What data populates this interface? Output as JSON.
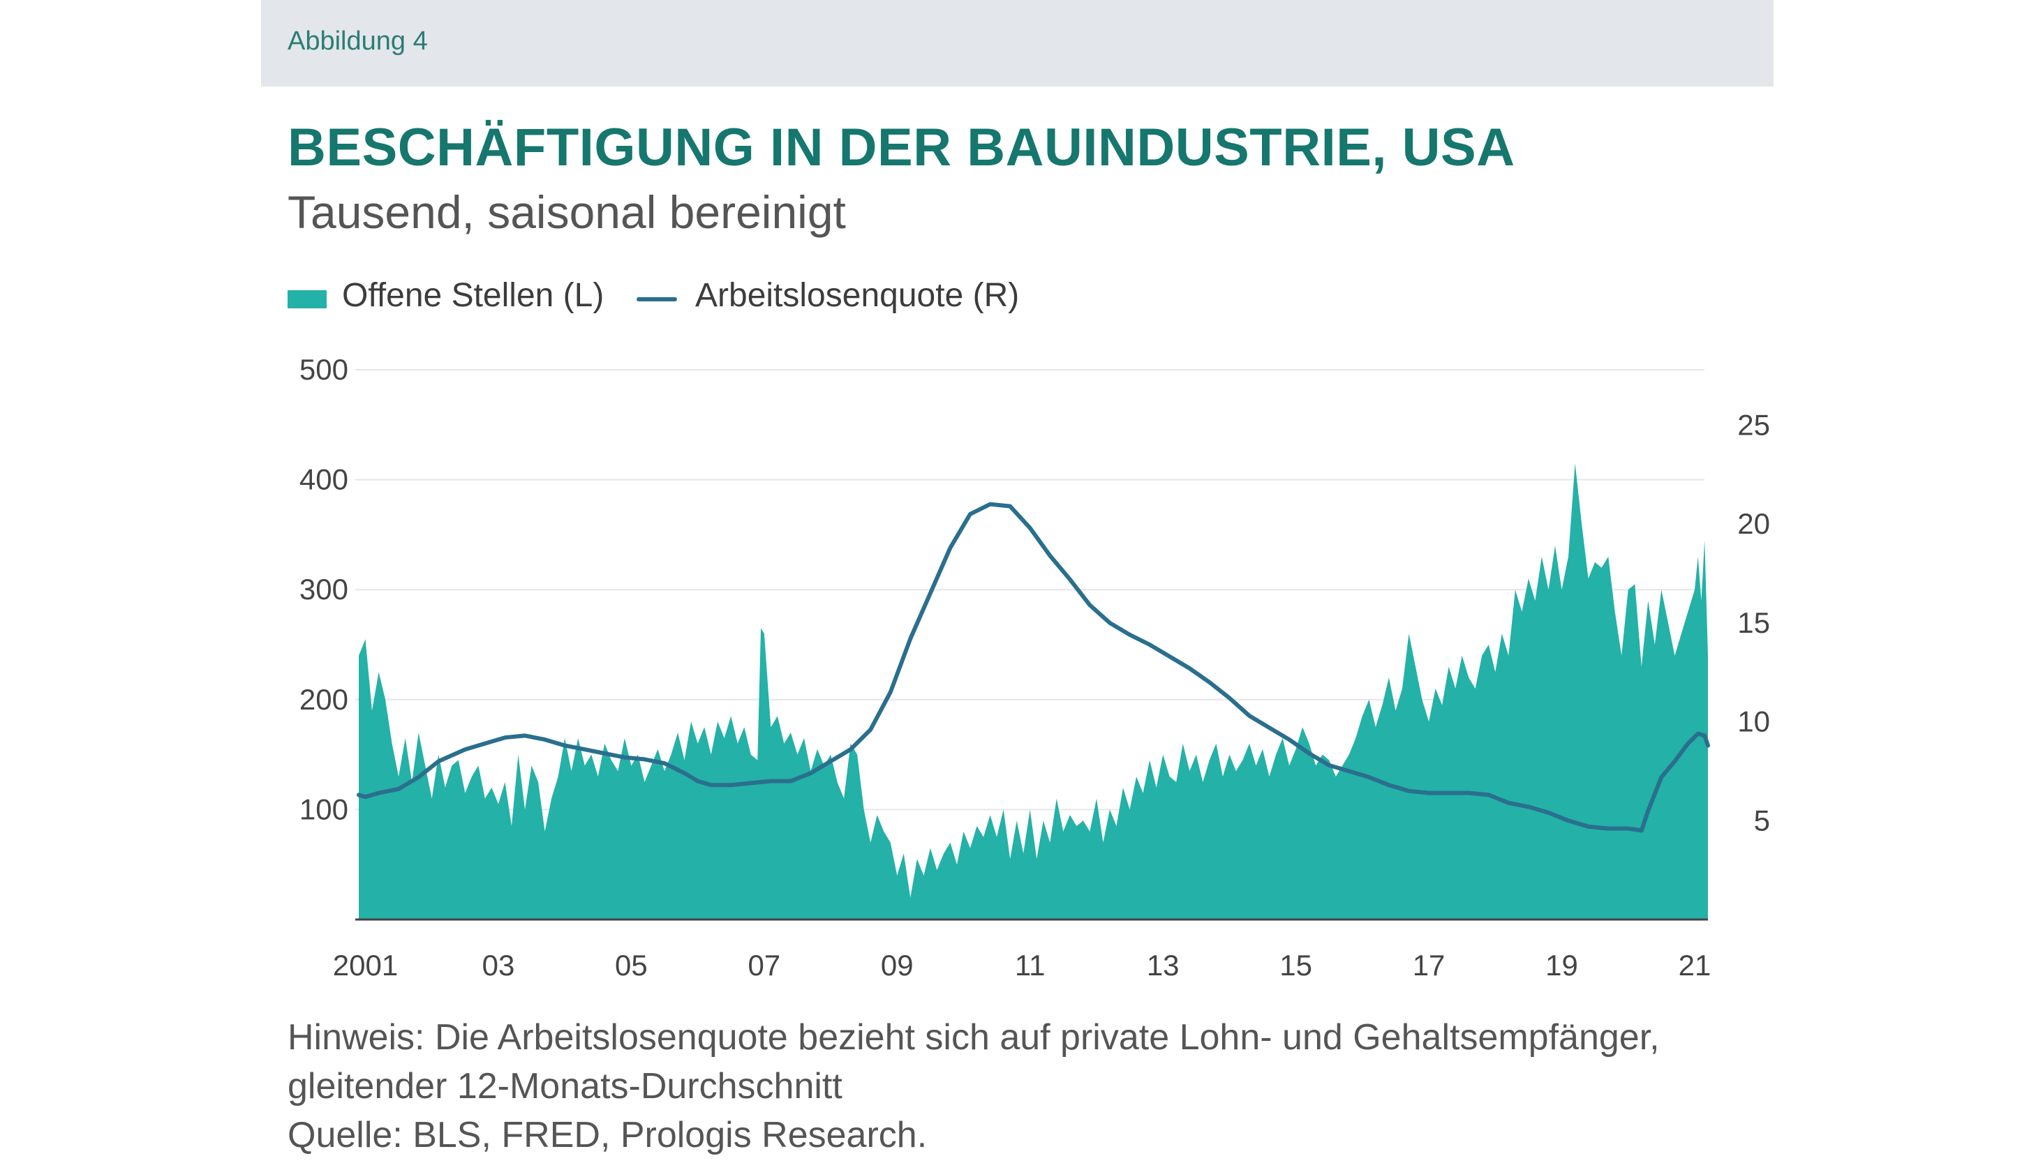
{
  "figure_label": "Abbildung 4",
  "title": "BESCHÄFTIGUNG IN DER BAUINDUSTRIE, USA",
  "subtitle": "Tausend, saisonal bereinigt",
  "legend": {
    "area_label": "Offene Stellen (L)",
    "line_label": "Arbeitslosenquote (R)"
  },
  "notes": {
    "line1": "Hinweis: Die Arbeitslosenquote bezieht sich auf private Lohn- und Gehaltsempfänger,",
    "line2": "gleitender 12-Monats-Durchschnitt",
    "line3": "Quelle: BLS, FRED, Prologis Research."
  },
  "colors": {
    "area": "#24b1a7",
    "line": "#2a6f8d",
    "grid": "#e6e6e6",
    "title": "#15776d"
  },
  "chart_data": {
    "type": "area+line",
    "x_range": [
      2000.9,
      2021.2
    ],
    "left_axis": {
      "ticks": [
        100,
        200,
        300,
        400,
        500
      ],
      "ylim": [
        0,
        500
      ]
    },
    "right_axis": {
      "ticks": [
        5,
        10,
        15,
        20,
        25
      ],
      "ylim": [
        0,
        27.8
      ]
    },
    "x_ticks": [
      {
        "x": 2001,
        "label": "2001"
      },
      {
        "x": 2003,
        "label": "03"
      },
      {
        "x": 2005,
        "label": "05"
      },
      {
        "x": 2007,
        "label": "07"
      },
      {
        "x": 2009,
        "label": "09"
      },
      {
        "x": 2011,
        "label": "11"
      },
      {
        "x": 2013,
        "label": "13"
      },
      {
        "x": 2015,
        "label": "15"
      },
      {
        "x": 2017,
        "label": "17"
      },
      {
        "x": 2019,
        "label": "19"
      },
      {
        "x": 2021,
        "label": "21"
      }
    ],
    "series": [
      {
        "name": "Offene Stellen (L)",
        "type": "area",
        "axis": "left",
        "points": [
          [
            2000.9,
            240
          ],
          [
            2001.0,
            255
          ],
          [
            2001.1,
            190
          ],
          [
            2001.2,
            225
          ],
          [
            2001.3,
            200
          ],
          [
            2001.4,
            160
          ],
          [
            2001.5,
            130
          ],
          [
            2001.6,
            165
          ],
          [
            2001.7,
            125
          ],
          [
            2001.8,
            170
          ],
          [
            2001.9,
            140
          ],
          [
            2002.0,
            110
          ],
          [
            2002.1,
            150
          ],
          [
            2002.2,
            120
          ],
          [
            2002.3,
            140
          ],
          [
            2002.4,
            145
          ],
          [
            2002.5,
            115
          ],
          [
            2002.6,
            130
          ],
          [
            2002.7,
            140
          ],
          [
            2002.8,
            110
          ],
          [
            2002.9,
            120
          ],
          [
            2003.0,
            105
          ],
          [
            2003.1,
            125
          ],
          [
            2003.2,
            85
          ],
          [
            2003.3,
            150
          ],
          [
            2003.4,
            100
          ],
          [
            2003.5,
            140
          ],
          [
            2003.6,
            125
          ],
          [
            2003.7,
            80
          ],
          [
            2003.8,
            110
          ],
          [
            2003.9,
            130
          ],
          [
            2004.0,
            165
          ],
          [
            2004.1,
            135
          ],
          [
            2004.2,
            165
          ],
          [
            2004.3,
            140
          ],
          [
            2004.4,
            150
          ],
          [
            2004.5,
            130
          ],
          [
            2004.6,
            160
          ],
          [
            2004.7,
            145
          ],
          [
            2004.8,
            135
          ],
          [
            2004.9,
            165
          ],
          [
            2005.0,
            140
          ],
          [
            2005.1,
            150
          ],
          [
            2005.2,
            125
          ],
          [
            2005.3,
            140
          ],
          [
            2005.4,
            155
          ],
          [
            2005.5,
            135
          ],
          [
            2005.6,
            150
          ],
          [
            2005.7,
            170
          ],
          [
            2005.8,
            145
          ],
          [
            2005.9,
            180
          ],
          [
            2006.0,
            160
          ],
          [
            2006.1,
            175
          ],
          [
            2006.2,
            150
          ],
          [
            2006.3,
            180
          ],
          [
            2006.4,
            165
          ],
          [
            2006.5,
            185
          ],
          [
            2006.6,
            160
          ],
          [
            2006.7,
            175
          ],
          [
            2006.8,
            150
          ],
          [
            2006.9,
            145
          ],
          [
            2006.95,
            265
          ],
          [
            2007.0,
            260
          ],
          [
            2007.1,
            175
          ],
          [
            2007.2,
            185
          ],
          [
            2007.3,
            160
          ],
          [
            2007.4,
            170
          ],
          [
            2007.5,
            150
          ],
          [
            2007.6,
            165
          ],
          [
            2007.7,
            135
          ],
          [
            2007.8,
            155
          ],
          [
            2007.9,
            140
          ],
          [
            2008.0,
            150
          ],
          [
            2008.1,
            125
          ],
          [
            2008.2,
            110
          ],
          [
            2008.3,
            160
          ],
          [
            2008.4,
            150
          ],
          [
            2008.5,
            100
          ],
          [
            2008.6,
            70
          ],
          [
            2008.7,
            95
          ],
          [
            2008.8,
            80
          ],
          [
            2008.9,
            70
          ],
          [
            2009.0,
            40
          ],
          [
            2009.1,
            60
          ],
          [
            2009.2,
            20
          ],
          [
            2009.3,
            55
          ],
          [
            2009.4,
            40
          ],
          [
            2009.5,
            65
          ],
          [
            2009.6,
            45
          ],
          [
            2009.7,
            60
          ],
          [
            2009.8,
            70
          ],
          [
            2009.9,
            50
          ],
          [
            2010.0,
            80
          ],
          [
            2010.1,
            65
          ],
          [
            2010.2,
            85
          ],
          [
            2010.3,
            75
          ],
          [
            2010.4,
            95
          ],
          [
            2010.5,
            75
          ],
          [
            2010.6,
            100
          ],
          [
            2010.7,
            55
          ],
          [
            2010.8,
            90
          ],
          [
            2010.9,
            60
          ],
          [
            2011.0,
            100
          ],
          [
            2011.1,
            55
          ],
          [
            2011.2,
            90
          ],
          [
            2011.3,
            70
          ],
          [
            2011.4,
            110
          ],
          [
            2011.5,
            80
          ],
          [
            2011.6,
            95
          ],
          [
            2011.7,
            85
          ],
          [
            2011.8,
            90
          ],
          [
            2011.9,
            80
          ],
          [
            2012.0,
            110
          ],
          [
            2012.1,
            70
          ],
          [
            2012.2,
            100
          ],
          [
            2012.3,
            85
          ],
          [
            2012.4,
            120
          ],
          [
            2012.5,
            100
          ],
          [
            2012.6,
            130
          ],
          [
            2012.7,
            115
          ],
          [
            2012.8,
            145
          ],
          [
            2012.9,
            120
          ],
          [
            2013.0,
            150
          ],
          [
            2013.1,
            130
          ],
          [
            2013.2,
            125
          ],
          [
            2013.3,
            160
          ],
          [
            2013.4,
            135
          ],
          [
            2013.5,
            150
          ],
          [
            2013.6,
            125
          ],
          [
            2013.7,
            145
          ],
          [
            2013.8,
            160
          ],
          [
            2013.9,
            130
          ],
          [
            2014.0,
            150
          ],
          [
            2014.1,
            135
          ],
          [
            2014.2,
            145
          ],
          [
            2014.3,
            160
          ],
          [
            2014.4,
            140
          ],
          [
            2014.5,
            155
          ],
          [
            2014.6,
            130
          ],
          [
            2014.7,
            150
          ],
          [
            2014.8,
            165
          ],
          [
            2014.9,
            140
          ],
          [
            2015.0,
            155
          ],
          [
            2015.1,
            175
          ],
          [
            2015.2,
            160
          ],
          [
            2015.3,
            140
          ],
          [
            2015.4,
            150
          ],
          [
            2015.5,
            145
          ],
          [
            2015.6,
            130
          ],
          [
            2015.7,
            140
          ],
          [
            2015.8,
            150
          ],
          [
            2015.9,
            165
          ],
          [
            2016.0,
            185
          ],
          [
            2016.1,
            200
          ],
          [
            2016.2,
            175
          ],
          [
            2016.3,
            195
          ],
          [
            2016.4,
            220
          ],
          [
            2016.5,
            190
          ],
          [
            2016.6,
            210
          ],
          [
            2016.7,
            260
          ],
          [
            2016.8,
            230
          ],
          [
            2016.9,
            200
          ],
          [
            2017.0,
            180
          ],
          [
            2017.1,
            210
          ],
          [
            2017.2,
            195
          ],
          [
            2017.3,
            230
          ],
          [
            2017.4,
            210
          ],
          [
            2017.5,
            240
          ],
          [
            2017.6,
            220
          ],
          [
            2017.7,
            210
          ],
          [
            2017.8,
            240
          ],
          [
            2017.9,
            250
          ],
          [
            2018.0,
            225
          ],
          [
            2018.1,
            260
          ],
          [
            2018.2,
            240
          ],
          [
            2018.3,
            300
          ],
          [
            2018.4,
            280
          ],
          [
            2018.5,
            310
          ],
          [
            2018.6,
            290
          ],
          [
            2018.7,
            330
          ],
          [
            2018.8,
            300
          ],
          [
            2018.9,
            340
          ],
          [
            2019.0,
            300
          ],
          [
            2019.1,
            330
          ],
          [
            2019.2,
            415
          ],
          [
            2019.3,
            360
          ],
          [
            2019.4,
            310
          ],
          [
            2019.5,
            325
          ],
          [
            2019.6,
            320
          ],
          [
            2019.7,
            330
          ],
          [
            2019.8,
            280
          ],
          [
            2019.9,
            240
          ],
          [
            2020.0,
            300
          ],
          [
            2020.1,
            305
          ],
          [
            2020.2,
            230
          ],
          [
            2020.3,
            290
          ],
          [
            2020.4,
            250
          ],
          [
            2020.5,
            300
          ],
          [
            2020.6,
            270
          ],
          [
            2020.7,
            240
          ],
          [
            2020.8,
            260
          ],
          [
            2020.9,
            280
          ],
          [
            2021.0,
            300
          ],
          [
            2021.05,
            330
          ],
          [
            2021.1,
            290
          ],
          [
            2021.15,
            345
          ],
          [
            2021.2,
            240
          ]
        ]
      },
      {
        "name": "Arbeitslosenquote (R)",
        "type": "line",
        "axis": "right",
        "points": [
          [
            2000.9,
            6.3
          ],
          [
            2001.0,
            6.2
          ],
          [
            2001.2,
            6.4
          ],
          [
            2001.5,
            6.6
          ],
          [
            2001.8,
            7.2
          ],
          [
            2002.1,
            8.0
          ],
          [
            2002.5,
            8.6
          ],
          [
            2002.9,
            9.0
          ],
          [
            2003.1,
            9.2
          ],
          [
            2003.4,
            9.3
          ],
          [
            2003.7,
            9.1
          ],
          [
            2004.0,
            8.8
          ],
          [
            2004.3,
            8.6
          ],
          [
            2004.6,
            8.4
          ],
          [
            2004.9,
            8.2
          ],
          [
            2005.2,
            8.1
          ],
          [
            2005.5,
            7.9
          ],
          [
            2005.8,
            7.4
          ],
          [
            2006.0,
            7.0
          ],
          [
            2006.2,
            6.8
          ],
          [
            2006.5,
            6.8
          ],
          [
            2006.8,
            6.9
          ],
          [
            2007.1,
            7.0
          ],
          [
            2007.4,
            7.0
          ],
          [
            2007.7,
            7.4
          ],
          [
            2008.0,
            8.0
          ],
          [
            2008.3,
            8.6
          ],
          [
            2008.6,
            9.6
          ],
          [
            2008.9,
            11.5
          ],
          [
            2009.2,
            14.2
          ],
          [
            2009.5,
            16.5
          ],
          [
            2009.8,
            18.8
          ],
          [
            2010.1,
            20.5
          ],
          [
            2010.4,
            21.0
          ],
          [
            2010.7,
            20.9
          ],
          [
            2011.0,
            19.8
          ],
          [
            2011.3,
            18.4
          ],
          [
            2011.6,
            17.2
          ],
          [
            2011.9,
            15.9
          ],
          [
            2012.2,
            15.0
          ],
          [
            2012.5,
            14.4
          ],
          [
            2012.8,
            13.9
          ],
          [
            2013.1,
            13.3
          ],
          [
            2013.4,
            12.7
          ],
          [
            2013.7,
            12.0
          ],
          [
            2014.0,
            11.2
          ],
          [
            2014.3,
            10.3
          ],
          [
            2014.6,
            9.7
          ],
          [
            2014.9,
            9.1
          ],
          [
            2015.2,
            8.4
          ],
          [
            2015.5,
            7.8
          ],
          [
            2015.8,
            7.5
          ],
          [
            2016.1,
            7.2
          ],
          [
            2016.4,
            6.8
          ],
          [
            2016.7,
            6.5
          ],
          [
            2017.0,
            6.4
          ],
          [
            2017.3,
            6.4
          ],
          [
            2017.6,
            6.4
          ],
          [
            2017.9,
            6.3
          ],
          [
            2018.2,
            5.9
          ],
          [
            2018.5,
            5.7
          ],
          [
            2018.8,
            5.4
          ],
          [
            2019.1,
            5.0
          ],
          [
            2019.4,
            4.7
          ],
          [
            2019.7,
            4.6
          ],
          [
            2020.0,
            4.6
          ],
          [
            2020.2,
            4.5
          ],
          [
            2020.3,
            5.5
          ],
          [
            2020.5,
            7.2
          ],
          [
            2020.7,
            8.0
          ],
          [
            2020.9,
            8.9
          ],
          [
            2021.05,
            9.4
          ],
          [
            2021.15,
            9.3
          ],
          [
            2021.2,
            8.8
          ]
        ]
      }
    ]
  }
}
